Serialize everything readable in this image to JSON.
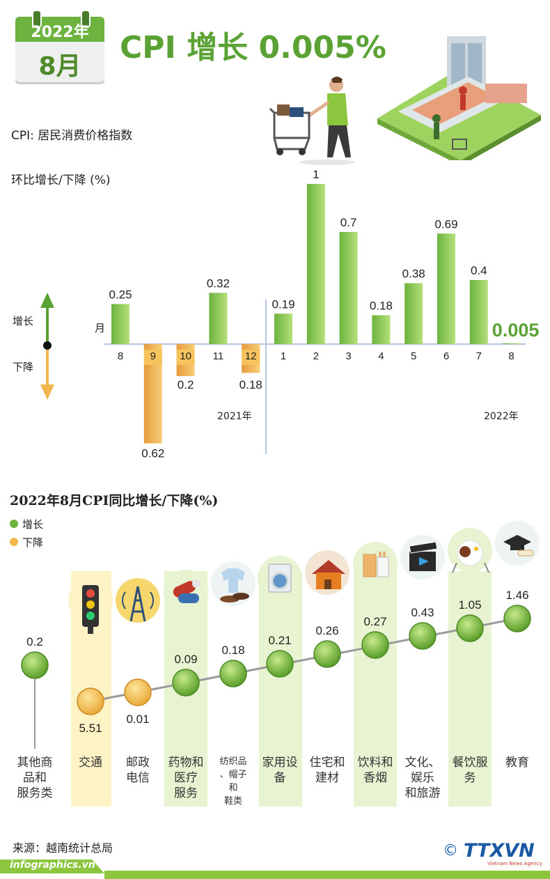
{
  "header": {
    "year": "2022年",
    "month": "8月",
    "title": "CPI 增长 0.005%"
  },
  "definition": "CPI: 居民消费价格指数",
  "colors": {
    "growth": "#8cc63f",
    "decline": "#f2b84b",
    "accent": "#5aa233"
  },
  "chart_data": [
    {
      "type": "bar",
      "title": "环比增长/下降 (%)",
      "xlabel": "月",
      "legend": {
        "up": "增长",
        "down": "下降"
      },
      "groups": [
        {
          "label": "2021年",
          "categories": [
            "8",
            "9",
            "10",
            "11",
            "12"
          ]
        },
        {
          "label": "2022年",
          "categories": [
            "1",
            "2",
            "3",
            "4",
            "5",
            "6",
            "7",
            "8"
          ]
        }
      ],
      "categories": [
        "8",
        "9",
        "10",
        "11",
        "12",
        "1",
        "2",
        "3",
        "4",
        "5",
        "6",
        "7",
        "8"
      ],
      "values": [
        0.25,
        -0.62,
        -0.2,
        0.32,
        -0.18,
        0.19,
        1,
        0.7,
        0.18,
        0.38,
        0.69,
        0.4,
        0.005
      ],
      "labels": [
        "0.25",
        "0.62",
        "0.2",
        "0.32",
        "0.18",
        "0.19",
        "1",
        "0.7",
        "0.18",
        "0.38",
        "0.69",
        "0.4",
        "0.005"
      ],
      "ylim": [
        -0.62,
        1
      ]
    },
    {
      "type": "scatter",
      "title": "2022年8月CPI同比增长/下降(%)",
      "legend": [
        {
          "name": "增长",
          "color": "#8cc63f"
        },
        {
          "name": "下降",
          "color": "#f2b84b"
        }
      ],
      "categories": [
        "其他商品和服务类",
        "交通",
        "邮政电信",
        "药物和医疗服务",
        "纺织品、帽子和鞋类",
        "家用设备",
        "住宅和建材",
        "饮料和香烟",
        "文化、娱乐和旅游",
        "餐饮服务",
        "教育"
      ],
      "values": [
        0.2,
        -5.51,
        -0.01,
        0.09,
        0.18,
        0.21,
        0.26,
        0.27,
        0.43,
        1.05,
        1.46
      ],
      "labels": [
        "0.2",
        "5.51",
        "0.01",
        "0.09",
        "0.18",
        "0.21",
        "0.26",
        "0.27",
        "0.43",
        "1.05",
        "1.46"
      ],
      "direction": [
        "up",
        "down",
        "down",
        "up",
        "up",
        "up",
        "up",
        "up",
        "up",
        "up",
        "up"
      ]
    }
  ],
  "categories_display": [
    [
      "其他商",
      "品和",
      "服务类"
    ],
    [
      "交通"
    ],
    [
      "邮政",
      "电信"
    ],
    [
      "药物和",
      "医疗",
      "服务"
    ],
    [
      "纺织品",
      "、帽子",
      "和",
      "鞋类"
    ],
    [
      "家用设",
      "备"
    ],
    [
      "住宅和",
      "建材"
    ],
    [
      "饮料和",
      "香烟"
    ],
    [
      "文化、",
      "娱乐",
      "和旅游"
    ],
    [
      "餐饮服",
      "务"
    ],
    [
      "教育"
    ]
  ],
  "icons": [
    "shopping-cart-icon",
    "supermarket-icon",
    "traffic-light-icon",
    "radio-tower-icon",
    "pills-icon",
    "clothes-icon",
    "washing-machine-icon",
    "house-icon",
    "drinks-cigarettes-icon",
    "film-clapper-icon",
    "food-plate-icon",
    "graduation-cap-icon"
  ],
  "footer": {
    "source": "来源：越南统计总局",
    "site": "infographics.vn",
    "copyright": "©",
    "brand": "TTXVN",
    "brand_sub": "Vietnam News Agency"
  }
}
